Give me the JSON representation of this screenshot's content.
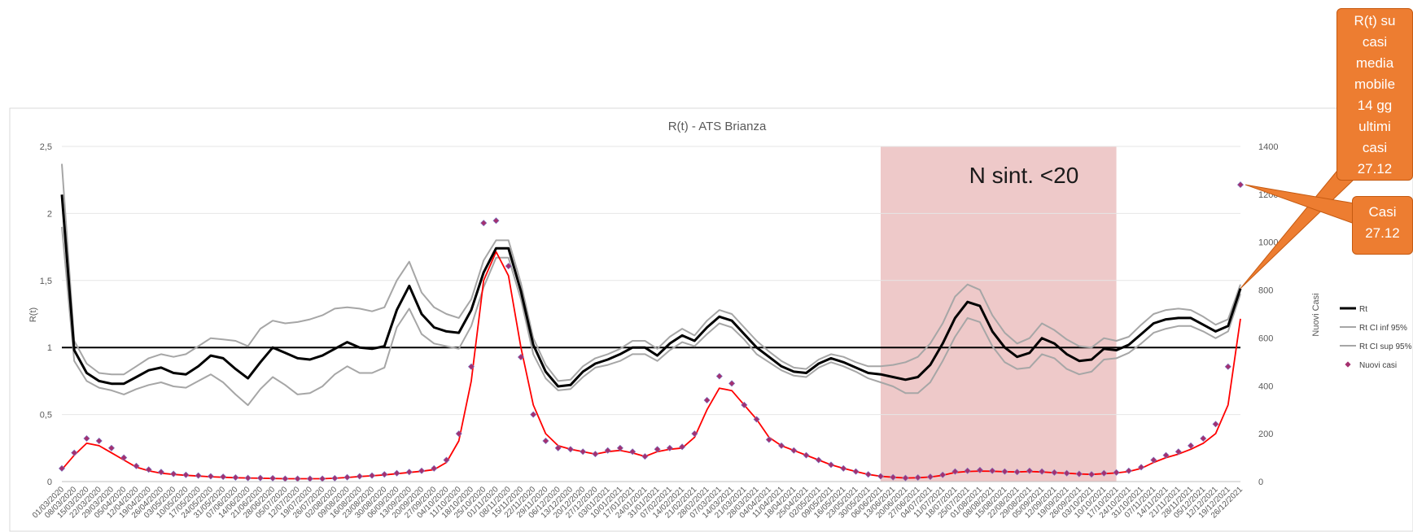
{
  "chart_data": {
    "type": "line",
    "title": "R(t) - ATS Brianza",
    "ylabel": "R(t)",
    "y2label": "Nuovi Casi",
    "ylim": [
      0,
      2.5
    ],
    "y2lim": [
      0,
      1400
    ],
    "yticks": [
      "0",
      "0,5",
      "1",
      "1,5",
      "2",
      "2,5"
    ],
    "y2ticks": [
      "0",
      "200",
      "400",
      "600",
      "800",
      "1000",
      "1200",
      "1400"
    ],
    "xticks": [
      "01/03/2020",
      "08/03/2020",
      "15/03/2020",
      "22/03/2020",
      "29/03/2020",
      "05/04/2020",
      "12/04/2020",
      "19/04/2020",
      "26/04/2020",
      "03/05/2020",
      "10/05/2020",
      "17/05/2020",
      "24/05/2020",
      "31/05/2020",
      "07/06/2020",
      "14/06/2020",
      "21/06/2020",
      "28/06/2020",
      "05/07/2020",
      "12/07/2020",
      "19/07/2020",
      "26/07/2020",
      "02/08/2020",
      "09/08/2020",
      "16/08/2020",
      "23/08/2020",
      "30/08/2020",
      "06/09/2020",
      "13/09/2020",
      "20/09/2020",
      "27/09/2020",
      "04/10/2020",
      "11/10/2020",
      "18/10/2020",
      "25/10/2020",
      "01/11/2020",
      "08/11/2020",
      "15/11/2020",
      "22/11/2020",
      "29/11/2020",
      "06/12/2020",
      "13/12/2020",
      "20/12/2020",
      "27/12/2020",
      "03/01/2021",
      "10/01/2021",
      "17/01/2021",
      "24/01/2021",
      "31/01/2021",
      "07/02/2021",
      "14/02/2021",
      "21/02/2021",
      "28/02/2021",
      "07/03/2021",
      "14/03/2021",
      "21/03/2021",
      "28/03/2021",
      "04/04/2021",
      "11/04/2021",
      "18/04/2021",
      "25/04/2021",
      "02/05/2021",
      "09/05/2021",
      "16/05/2021",
      "23/05/2021",
      "30/05/2021",
      "06/06/2021",
      "13/06/2021",
      "20/06/2021",
      "27/06/2021",
      "04/07/2021",
      "11/07/2021",
      "18/07/2021",
      "25/07/2021",
      "01/08/2021",
      "08/08/2021",
      "15/08/2021",
      "22/08/2021",
      "29/08/2021",
      "05/09/2021",
      "12/09/2021",
      "19/09/2021",
      "26/09/2021",
      "03/10/2021",
      "10/10/2021",
      "17/10/2021",
      "24/10/2021",
      "31/10/2021",
      "07/11/2021",
      "14/11/2021",
      "21/11/2021",
      "28/11/2021",
      "05/12/2021",
      "12/12/2021",
      "19/12/2021",
      "26/12/2021"
    ],
    "reference_line": 1,
    "series": [
      {
        "name": "Rt",
        "axis": "left",
        "color": "#000000",
        "values": [
          2.14,
          0.98,
          0.81,
          0.75,
          0.73,
          0.73,
          0.78,
          0.83,
          0.85,
          0.81,
          0.8,
          0.86,
          0.94,
          0.92,
          0.84,
          0.77,
          0.89,
          1.0,
          0.96,
          0.92,
          0.91,
          0.94,
          0.99,
          1.04,
          1.0,
          0.99,
          1.01,
          1.28,
          1.46,
          1.25,
          1.15,
          1.12,
          1.11,
          1.28,
          1.56,
          1.74,
          1.74,
          1.42,
          1.02,
          0.82,
          0.71,
          0.72,
          0.82,
          0.88,
          0.91,
          0.95,
          1.0,
          1.0,
          0.94,
          1.03,
          1.09,
          1.05,
          1.15,
          1.23,
          1.2,
          1.1,
          1.0,
          0.93,
          0.86,
          0.82,
          0.81,
          0.88,
          0.92,
          0.89,
          0.85,
          0.81,
          0.8,
          0.78,
          0.76,
          0.78,
          0.87,
          1.03,
          1.22,
          1.34,
          1.31,
          1.12,
          1.0,
          0.93,
          0.96,
          1.07,
          1.03,
          0.95,
          0.9,
          0.91,
          0.99,
          0.98,
          1.02,
          1.1,
          1.18,
          1.21,
          1.22,
          1.22,
          1.17,
          1.12,
          1.16,
          1.44
        ]
      },
      {
        "name": "Rt CI inf 95%",
        "axis": "left",
        "color": "#a6a6a6",
        "values": [
          1.9,
          0.9,
          0.75,
          0.7,
          0.68,
          0.65,
          0.69,
          0.72,
          0.74,
          0.71,
          0.7,
          0.75,
          0.8,
          0.74,
          0.65,
          0.57,
          0.69,
          0.78,
          0.72,
          0.65,
          0.66,
          0.71,
          0.8,
          0.86,
          0.81,
          0.81,
          0.85,
          1.15,
          1.29,
          1.1,
          1.03,
          1.01,
          0.99,
          1.16,
          1.45,
          1.67,
          1.67,
          1.36,
          0.95,
          0.77,
          0.68,
          0.69,
          0.78,
          0.85,
          0.87,
          0.9,
          0.95,
          0.95,
          0.9,
          0.98,
          1.04,
          1.01,
          1.1,
          1.18,
          1.15,
          1.06,
          0.95,
          0.89,
          0.83,
          0.79,
          0.78,
          0.85,
          0.89,
          0.86,
          0.82,
          0.77,
          0.74,
          0.71,
          0.66,
          0.66,
          0.74,
          0.9,
          1.08,
          1.22,
          1.19,
          1.01,
          0.89,
          0.84,
          0.85,
          0.95,
          0.92,
          0.84,
          0.8,
          0.82,
          0.91,
          0.92,
          0.96,
          1.03,
          1.11,
          1.14,
          1.16,
          1.16,
          1.12,
          1.07,
          1.12,
          1.4
        ]
      },
      {
        "name": "Rt CI sup 95%",
        "axis": "left",
        "color": "#a6a6a6",
        "values": [
          2.37,
          1.05,
          0.88,
          0.81,
          0.8,
          0.8,
          0.86,
          0.92,
          0.95,
          0.93,
          0.95,
          1.01,
          1.07,
          1.06,
          1.05,
          1.01,
          1.14,
          1.2,
          1.18,
          1.19,
          1.21,
          1.24,
          1.29,
          1.3,
          1.29,
          1.27,
          1.3,
          1.5,
          1.64,
          1.41,
          1.3,
          1.25,
          1.22,
          1.36,
          1.65,
          1.8,
          1.8,
          1.48,
          1.07,
          0.87,
          0.75,
          0.76,
          0.86,
          0.92,
          0.95,
          0.99,
          1.05,
          1.05,
          0.99,
          1.08,
          1.14,
          1.09,
          1.2,
          1.28,
          1.25,
          1.15,
          1.05,
          0.97,
          0.9,
          0.85,
          0.84,
          0.91,
          0.95,
          0.93,
          0.89,
          0.86,
          0.86,
          0.87,
          0.89,
          0.93,
          1.03,
          1.18,
          1.38,
          1.47,
          1.43,
          1.24,
          1.11,
          1.03,
          1.07,
          1.18,
          1.13,
          1.06,
          1.01,
          1.0,
          1.07,
          1.05,
          1.08,
          1.17,
          1.25,
          1.28,
          1.29,
          1.28,
          1.23,
          1.17,
          1.21,
          1.47
        ]
      },
      {
        "name": "Nuovi casi",
        "axis": "right",
        "color": "#a5306f",
        "marker": "diamond",
        "values": [
          55,
          120,
          180,
          170,
          140,
          100,
          65,
          50,
          40,
          32,
          28,
          25,
          22,
          20,
          17,
          15,
          15,
          14,
          12,
          12,
          12,
          12,
          14,
          18,
          22,
          25,
          30,
          35,
          40,
          45,
          55,
          90,
          200,
          480,
          1080,
          1090,
          900,
          520,
          280,
          170,
          140,
          135,
          125,
          115,
          130,
          140,
          125,
          105,
          135,
          140,
          145,
          200,
          340,
          440,
          410,
          320,
          260,
          175,
          150,
          130,
          110,
          90,
          70,
          55,
          42,
          30,
          22,
          18,
          15,
          17,
          20,
          28,
          42,
          45,
          48,
          45,
          42,
          40,
          45,
          42,
          38,
          35,
          32,
          30,
          35,
          38,
          45,
          60,
          90,
          110,
          125,
          150,
          180,
          240,
          480,
          1240
        ]
      },
      {
        "name": "R(t) su casi media mobile 14 gg",
        "axis": "right",
        "color": "#ff0000",
        "in_legend": false,
        "values": [
          50,
          110,
          160,
          150,
          120,
          90,
          60,
          45,
          35,
          30,
          26,
          23,
          20,
          18,
          16,
          15,
          14,
          13,
          12,
          12,
          12,
          12,
          14,
          17,
          21,
          24,
          28,
          33,
          38,
          43,
          50,
          80,
          170,
          420,
          840,
          960,
          860,
          560,
          320,
          200,
          150,
          135,
          125,
          115,
          125,
          130,
          120,
          105,
          125,
          135,
          140,
          185,
          300,
          390,
          380,
          320,
          260,
          185,
          150,
          130,
          110,
          90,
          70,
          55,
          42,
          30,
          22,
          18,
          15,
          16,
          19,
          26,
          38,
          42,
          44,
          43,
          41,
          40,
          42,
          40,
          37,
          35,
          32,
          30,
          33,
          36,
          42,
          55,
          80,
          100,
          115,
          135,
          160,
          200,
          320,
          680
        ]
      }
    ],
    "shaded_band": {
      "from": "06/06/2021",
      "to": "17/10/2021",
      "label": "N sint. <20",
      "color": "#e8b7b7"
    },
    "legend": {
      "position": "right"
    }
  },
  "callouts": [
    {
      "lines": [
        "R(t) su",
        "casi",
        "media",
        "mobile",
        "14 gg",
        "ultimi",
        "casi",
        "27.12"
      ]
    },
    {
      "lines": [
        "Casi",
        "27.12"
      ]
    }
  ]
}
